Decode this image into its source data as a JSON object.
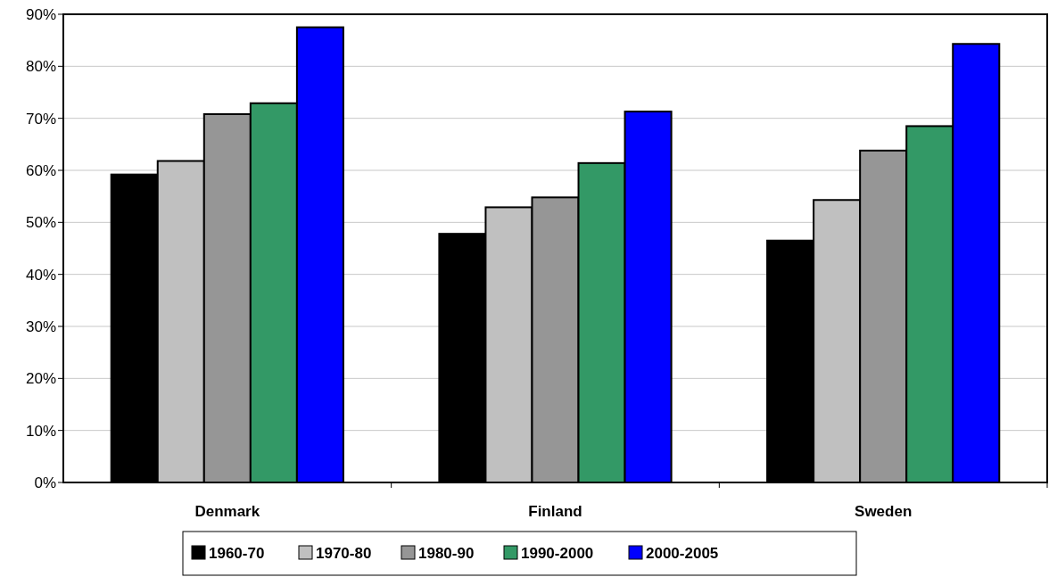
{
  "chart_data": {
    "type": "bar",
    "categories": [
      "Denmark",
      "Finland",
      "Sweden"
    ],
    "series": [
      {
        "name": "1960-70",
        "color": "#000000",
        "values": [
          59.2,
          47.8,
          46.5
        ]
      },
      {
        "name": "1970-80",
        "color": "#c0c0c0",
        "values": [
          61.8,
          52.9,
          54.3
        ]
      },
      {
        "name": "1980-90",
        "color": "#969696",
        "values": [
          70.8,
          54.8,
          63.8
        ]
      },
      {
        "name": "1990-2000",
        "color": "#339966",
        "values": [
          72.9,
          61.4,
          68.5
        ]
      },
      {
        "name": "2000-2005",
        "color": "#0000ff",
        "values": [
          87.5,
          71.3,
          84.3
        ]
      }
    ],
    "ylim": [
      0,
      90
    ],
    "yticks": [
      {
        "value": 0,
        "label": "0%"
      },
      {
        "value": 10,
        "label": "10%"
      },
      {
        "value": 20,
        "label": "20%"
      },
      {
        "value": 30,
        "label": "30%"
      },
      {
        "value": 40,
        "label": "40%"
      },
      {
        "value": 50,
        "label": "50%"
      },
      {
        "value": 60,
        "label": "60%"
      },
      {
        "value": 70,
        "label": "70%"
      },
      {
        "value": 80,
        "label": "80%"
      },
      {
        "value": 90,
        "label": "90%"
      }
    ],
    "grid": "y",
    "legend": "bottom"
  }
}
